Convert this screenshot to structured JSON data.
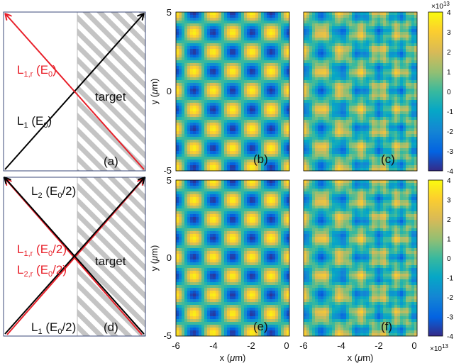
{
  "panels": {
    "a": {
      "label": "(a)",
      "beam_red": "L",
      "beam_red_sub": "1,r",
      "beam_red_arg": " (E",
      "beam_red_arg_sub": "0",
      "beam_red_end": ")",
      "beam_black": "L",
      "beam_black_sub": "1",
      "beam_black_arg": " (E",
      "beam_black_arg_sub": "0",
      "beam_black_end": ")",
      "target": "target"
    },
    "d": {
      "label": "(d)",
      "l2": "L",
      "l2_sub": "2",
      "l2_arg": " (E",
      "l2_arg_sub": "0",
      "l2_end": "/2)",
      "l1r": "L",
      "l1r_sub": "1,r",
      "l1r_arg": " (E",
      "l1r_arg_sub": "0",
      "l1r_end": "/2)",
      "l2r": "L",
      "l2r_sub": "2,r",
      "l2r_arg": " (E",
      "l2r_arg_sub": "0",
      "l2r_end": "/2)",
      "l1": "L",
      "l1_sub": "1",
      "l1_arg": " (E",
      "l1_arg_sub": "0",
      "l1_end": "/2)",
      "target": "target"
    },
    "b": {
      "label": "(b)"
    },
    "c": {
      "label": "(c)"
    },
    "e": {
      "label": "(e)"
    },
    "f": {
      "label": "(f)"
    }
  },
  "axes": {
    "x_label": "x (",
    "x_label_mu": "μ",
    "x_label_end": "m)",
    "y_label": "y (",
    "y_label_mu": "μ",
    "y_label_end": "m)",
    "x_ticks": [
      "-6",
      "-4",
      "-2",
      "0"
    ],
    "y_ticks": [
      "5",
      "0",
      "-5"
    ]
  },
  "colorbar": {
    "ticks": [
      "4",
      "3",
      "2",
      "1",
      "0",
      "-1",
      "-2",
      "-3",
      "-4"
    ],
    "exponent_base": "×10",
    "exponent_power": "13",
    "colormap": "parula"
  },
  "colors": {
    "red_beam": "#e8202a",
    "black_beam": "#000000",
    "hatch": "#bdbdbd",
    "frame_blue": "#3b4a7a"
  }
}
